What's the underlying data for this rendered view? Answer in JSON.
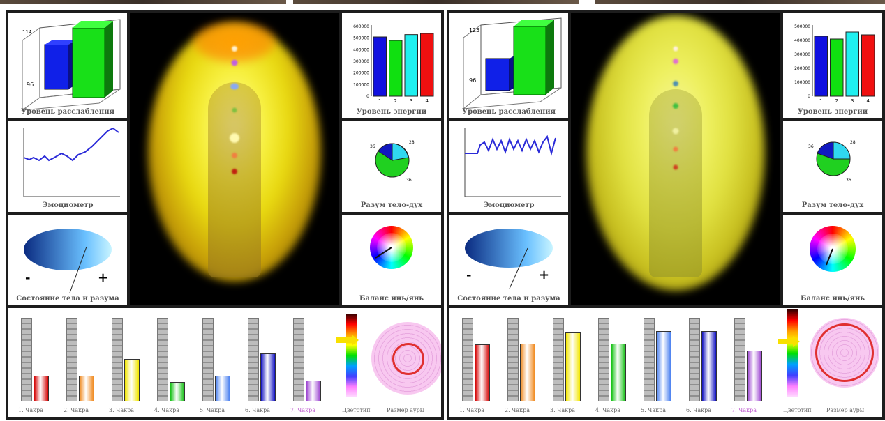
{
  "left_panel": {
    "relaxation": {
      "top_value": "114",
      "bottom_value": "96",
      "caption": "Уровень расслабления"
    },
    "energy": {
      "caption": "Уровень энергии",
      "ticks": [
        "600000",
        "500000",
        "400000",
        "300000",
        "200000",
        "100000",
        "0"
      ],
      "bars": [
        "1",
        "2",
        "3",
        "4"
      ]
    },
    "emotiometer": {
      "caption": "Эмоциометр"
    },
    "mind_body": {
      "caption": "Разум тело-дух",
      "labels": [
        "36",
        "28",
        "36"
      ]
    },
    "state": {
      "minus": "-",
      "plus": "+",
      "caption": "Состояние тела и разума"
    },
    "balance": {
      "caption": "Баланс инь/янь"
    },
    "chakras": [
      "1. Чакра",
      "2. Чакра",
      "3. Чакра",
      "4. Чакра",
      "5. Чакра",
      "6. Чакра",
      "7. Чакра"
    ],
    "colors_label": "Цветотип",
    "aura_size_label": "Размер ауры"
  },
  "right_panel": {
    "relaxation": {
      "top_value": "125",
      "bottom_value": "96",
      "caption": "Уровень расслабления"
    },
    "energy": {
      "caption": "Уровень энергии",
      "ticks": [
        "500000",
        "400000",
        "300000",
        "200000",
        "100000",
        "0"
      ],
      "bars": [
        "1",
        "2",
        "3",
        "4"
      ]
    },
    "emotiometer": {
      "caption": "Эмоциометр"
    },
    "mind_body": {
      "caption": "Разум тело-дух",
      "labels": [
        "36",
        "28",
        "36"
      ]
    },
    "state": {
      "minus": "-",
      "plus": "+",
      "caption": "Состояние тела и разума"
    },
    "balance": {
      "caption": "Баланс инь/янь"
    },
    "chakras": [
      "1. Чакра",
      "2. Чакра",
      "3. Чакра",
      "4. Чакра",
      "5. Чакра",
      "6. Чакра",
      "7. Чакра"
    ],
    "colors_label": "Цветотип",
    "aura_size_label": "Размер ауры"
  },
  "chart_data": [
    {
      "type": "bar",
      "categories": [
        "1",
        "2",
        "3",
        "4"
      ],
      "values": [
        510000,
        480000,
        530000,
        540000
      ],
      "ylim": [
        0,
        600000
      ],
      "title": "",
      "xlabel": "",
      "ylabel": ""
    },
    {
      "type": "bar",
      "categories": [
        "1",
        "2",
        "3",
        "4"
      ],
      "values": [
        430000,
        410000,
        460000,
        440000
      ],
      "ylim": [
        0,
        500000
      ],
      "title": "",
      "xlabel": "",
      "ylabel": ""
    },
    {
      "type": "bar",
      "categories": [
        "1. Чакра",
        "2. Чакра",
        "3. Чакра",
        "4. Чакра",
        "5. Чакра",
        "6. Чакра",
        "7. Чакра"
      ],
      "values": [
        0.3,
        0.3,
        0.5,
        0.22,
        0.3,
        0.57,
        0.24
      ],
      "ylim": [
        0,
        1
      ],
      "title": "",
      "xlabel": "",
      "ylabel": ""
    },
    {
      "type": "bar",
      "categories": [
        "1. Чакра",
        "2. Чакра",
        "3. Чакра",
        "4. Чакра",
        "5. Чакра",
        "6. Чакра",
        "7. Чакра"
      ],
      "values": [
        0.68,
        0.69,
        0.82,
        0.69,
        0.84,
        0.84,
        0.6
      ],
      "ylim": [
        0,
        1
      ],
      "title": "",
      "xlabel": "",
      "ylabel": ""
    }
  ],
  "colors": {
    "chakra": [
      "#d40000",
      "#f08a20",
      "#f2e600",
      "#10c010",
      "#4a80f0",
      "#1010c0",
      "#9a40d0"
    ],
    "energy_bars": [
      "#1010e0",
      "#10e010",
      "#20f0f0",
      "#f01010"
    ]
  }
}
